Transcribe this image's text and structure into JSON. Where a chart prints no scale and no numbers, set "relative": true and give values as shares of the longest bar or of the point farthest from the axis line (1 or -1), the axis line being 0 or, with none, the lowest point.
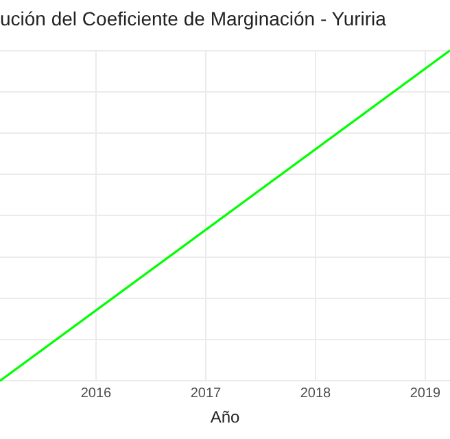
{
  "chart_data": {
    "type": "line",
    "title": "ución del Coeficiente de Marginación - Yuriria",
    "xlabel": "Año",
    "x": [
      2015.125,
      2019.225
    ],
    "series": [
      {
        "color": "#00ff00",
        "values": [
          0,
          1
        ]
      }
    ],
    "relative": true,
    "xlim": [
      2015.125,
      2019.225
    ],
    "xticks": [
      2016,
      2017,
      2018,
      2019
    ],
    "grid": true,
    "legend": false,
    "marker": "none",
    "line_style": "solid"
  }
}
